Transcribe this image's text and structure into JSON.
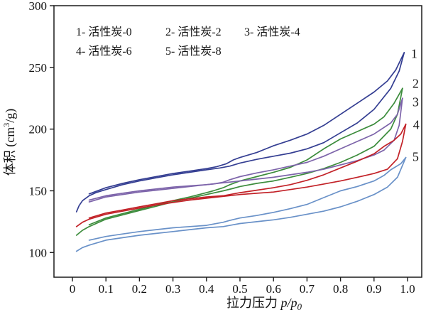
{
  "figure": {
    "background": "#ffffff",
    "frame_color": "#1b1b1b",
    "text_color": "#111111"
  },
  "chart_data": {
    "type": "line",
    "title": "",
    "xlabel": "拉力压力 p/p0",
    "ylabel": "体积 (cm3/g)",
    "xlabel_parts": {
      "cn": "拉力压力 ",
      "var": "p/p",
      "sub": "0"
    },
    "ylabel_parts": {
      "cn": "体积",
      "pre": " (cm",
      "sup": "3",
      "post": "/g)"
    },
    "xlim": [
      -0.0551,
      1.0424
    ],
    "ylim": [
      80,
      300
    ],
    "x_ticks": [
      0,
      0.1,
      0.2,
      0.3,
      0.4,
      0.5,
      0.6,
      0.7,
      0.8,
      0.9,
      1.0
    ],
    "x_tick_labels": [
      "0",
      "0.1",
      "0.2",
      "0.3",
      "0.4",
      "0.5",
      "0.6",
      "0.7",
      "0.8",
      "0.9",
      "1.0"
    ],
    "y_ticks": [
      100,
      150,
      200,
      250,
      300
    ],
    "y_tick_labels": [
      "100",
      "150",
      "200",
      "250",
      "300"
    ],
    "grid": false,
    "legend": {
      "position": "top-left-inside",
      "items": [
        {
          "id": "1",
          "name": "活性炭-0",
          "row": 0,
          "col": 0
        },
        {
          "id": "2",
          "name": "活性炭-2",
          "row": 0,
          "col": 1
        },
        {
          "id": "3",
          "name": "活性炭-4",
          "row": 0,
          "col": 2
        },
        {
          "id": "4",
          "name": "活性炭-6",
          "row": 1,
          "col": 0
        },
        {
          "id": "5",
          "name": "活性炭-8",
          "row": 1,
          "col": 1
        }
      ]
    },
    "series": [
      {
        "id": "1",
        "name": "活性炭-0",
        "color": "#343e92",
        "end_label": {
          "x": 1.02,
          "y": 261
        },
        "adsorption": [
          [
            0.012,
            133
          ],
          [
            0.02,
            138
          ],
          [
            0.03,
            142
          ],
          [
            0.05,
            146
          ],
          [
            0.07,
            148.5
          ],
          [
            0.1,
            151
          ],
          [
            0.15,
            155
          ],
          [
            0.2,
            158
          ],
          [
            0.25,
            160.5
          ],
          [
            0.3,
            163
          ],
          [
            0.35,
            165
          ],
          [
            0.4,
            167
          ],
          [
            0.44,
            168.5
          ],
          [
            0.47,
            170
          ],
          [
            0.5,
            172.5
          ],
          [
            0.55,
            175.5
          ],
          [
            0.6,
            178
          ],
          [
            0.65,
            180.5
          ],
          [
            0.7,
            184
          ],
          [
            0.75,
            189
          ],
          [
            0.8,
            197
          ],
          [
            0.85,
            205
          ],
          [
            0.9,
            216
          ],
          [
            0.95,
            233
          ],
          [
            0.975,
            247
          ],
          [
            0.99,
            262
          ]
        ],
        "desorption": [
          [
            0.99,
            262
          ],
          [
            0.965,
            248
          ],
          [
            0.94,
            239
          ],
          [
            0.9,
            230
          ],
          [
            0.85,
            221
          ],
          [
            0.8,
            212
          ],
          [
            0.75,
            203
          ],
          [
            0.7,
            196
          ],
          [
            0.65,
            191
          ],
          [
            0.6,
            186.5
          ],
          [
            0.55,
            181
          ],
          [
            0.5,
            177
          ],
          [
            0.48,
            175
          ],
          [
            0.46,
            172
          ],
          [
            0.43,
            169.5
          ],
          [
            0.4,
            168
          ],
          [
            0.35,
            166
          ],
          [
            0.3,
            164
          ],
          [
            0.25,
            161.5
          ],
          [
            0.2,
            159
          ],
          [
            0.15,
            156
          ],
          [
            0.1,
            152.5
          ],
          [
            0.05,
            147.5
          ]
        ]
      },
      {
        "id": "2",
        "name": "活性炭-2",
        "color": "#3c8c3c",
        "end_label": {
          "x": 1.024,
          "y": 237
        },
        "adsorption": [
          [
            0.012,
            114
          ],
          [
            0.03,
            118
          ],
          [
            0.05,
            121
          ],
          [
            0.1,
            127
          ],
          [
            0.15,
            130.5
          ],
          [
            0.2,
            134
          ],
          [
            0.25,
            137.5
          ],
          [
            0.3,
            141
          ],
          [
            0.35,
            144
          ],
          [
            0.4,
            147
          ],
          [
            0.45,
            150
          ],
          [
            0.48,
            152
          ],
          [
            0.5,
            153.5
          ],
          [
            0.55,
            156
          ],
          [
            0.6,
            158
          ],
          [
            0.65,
            161
          ],
          [
            0.7,
            164
          ],
          [
            0.75,
            168
          ],
          [
            0.8,
            173
          ],
          [
            0.85,
            179
          ],
          [
            0.9,
            186
          ],
          [
            0.95,
            200
          ],
          [
            0.97,
            212
          ],
          [
            0.985,
            233
          ]
        ],
        "desorption": [
          [
            0.985,
            233
          ],
          [
            0.96,
            221
          ],
          [
            0.93,
            210
          ],
          [
            0.9,
            204
          ],
          [
            0.85,
            198
          ],
          [
            0.8,
            192
          ],
          [
            0.75,
            184
          ],
          [
            0.7,
            175
          ],
          [
            0.65,
            169
          ],
          [
            0.6,
            165
          ],
          [
            0.55,
            161.5
          ],
          [
            0.5,
            158
          ],
          [
            0.47,
            155
          ],
          [
            0.45,
            152.5
          ],
          [
            0.42,
            150
          ],
          [
            0.4,
            148.5
          ],
          [
            0.35,
            145
          ],
          [
            0.3,
            142
          ],
          [
            0.25,
            138.5
          ],
          [
            0.2,
            135
          ],
          [
            0.15,
            131.5
          ],
          [
            0.1,
            128
          ],
          [
            0.05,
            122.5
          ]
        ]
      },
      {
        "id": "3",
        "name": "活性炭-4",
        "color": "#7d64aa",
        "end_label": {
          "x": 1.024,
          "y": 222
        },
        "adsorption": [
          [
            0.05,
            141
          ],
          [
            0.1,
            145
          ],
          [
            0.15,
            147
          ],
          [
            0.2,
            149
          ],
          [
            0.25,
            150.5
          ],
          [
            0.3,
            152
          ],
          [
            0.35,
            153.5
          ],
          [
            0.4,
            155
          ],
          [
            0.45,
            156.5
          ],
          [
            0.5,
            158
          ],
          [
            0.55,
            159.5
          ],
          [
            0.6,
            161
          ],
          [
            0.65,
            163
          ],
          [
            0.7,
            165
          ],
          [
            0.75,
            167.5
          ],
          [
            0.8,
            171
          ],
          [
            0.85,
            174.5
          ],
          [
            0.9,
            179
          ],
          [
            0.93,
            183
          ],
          [
            0.96,
            191
          ],
          [
            0.975,
            203
          ],
          [
            0.985,
            225
          ]
        ],
        "desorption": [
          [
            0.985,
            225
          ],
          [
            0.97,
            212
          ],
          [
            0.95,
            205
          ],
          [
            0.9,
            196
          ],
          [
            0.85,
            190
          ],
          [
            0.8,
            184
          ],
          [
            0.75,
            178
          ],
          [
            0.7,
            173
          ],
          [
            0.65,
            170
          ],
          [
            0.6,
            167
          ],
          [
            0.55,
            164.5
          ],
          [
            0.5,
            161.5
          ],
          [
            0.47,
            159
          ],
          [
            0.45,
            157
          ],
          [
            0.42,
            155.5
          ],
          [
            0.4,
            155
          ],
          [
            0.35,
            154
          ],
          [
            0.3,
            153
          ],
          [
            0.25,
            151.5
          ],
          [
            0.2,
            150
          ],
          [
            0.15,
            148
          ],
          [
            0.1,
            146
          ],
          [
            0.05,
            142.5
          ]
        ]
      },
      {
        "id": "4",
        "name": "活性炭-6",
        "color": "#c22127",
        "end_label": {
          "x": 1.026,
          "y": 203.5
        },
        "adsorption": [
          [
            0.012,
            121
          ],
          [
            0.03,
            124.5
          ],
          [
            0.05,
            127
          ],
          [
            0.1,
            131
          ],
          [
            0.15,
            133.5
          ],
          [
            0.2,
            136
          ],
          [
            0.25,
            138.5
          ],
          [
            0.3,
            140.5
          ],
          [
            0.35,
            142.5
          ],
          [
            0.4,
            144
          ],
          [
            0.45,
            145.5
          ],
          [
            0.5,
            147
          ],
          [
            0.55,
            148
          ],
          [
            0.6,
            149
          ],
          [
            0.65,
            151
          ],
          [
            0.7,
            153
          ],
          [
            0.75,
            155.5
          ],
          [
            0.8,
            158
          ],
          [
            0.85,
            161
          ],
          [
            0.9,
            164
          ],
          [
            0.94,
            167.5
          ],
          [
            0.97,
            176
          ],
          [
            0.985,
            190
          ],
          [
            0.995,
            204
          ]
        ],
        "desorption": [
          [
            0.995,
            204
          ],
          [
            0.98,
            196
          ],
          [
            0.96,
            191
          ],
          [
            0.93,
            186
          ],
          [
            0.9,
            180
          ],
          [
            0.85,
            174
          ],
          [
            0.8,
            168.5
          ],
          [
            0.75,
            163
          ],
          [
            0.7,
            158.5
          ],
          [
            0.65,
            155
          ],
          [
            0.6,
            152.5
          ],
          [
            0.55,
            150.5
          ],
          [
            0.5,
            148.5
          ],
          [
            0.47,
            147
          ],
          [
            0.45,
            146
          ],
          [
            0.4,
            145
          ],
          [
            0.35,
            143.5
          ],
          [
            0.3,
            142
          ],
          [
            0.25,
            139.5
          ],
          [
            0.2,
            137
          ],
          [
            0.15,
            134.5
          ],
          [
            0.1,
            132
          ],
          [
            0.05,
            128
          ]
        ]
      },
      {
        "id": "5",
        "name": "活性炭-8",
        "color": "#6991c8",
        "end_label": {
          "x": 1.024,
          "y": 177.5
        },
        "adsorption": [
          [
            0.012,
            101
          ],
          [
            0.03,
            104
          ],
          [
            0.05,
            106
          ],
          [
            0.1,
            110
          ],
          [
            0.15,
            112
          ],
          [
            0.2,
            114
          ],
          [
            0.25,
            115.5
          ],
          [
            0.3,
            117
          ],
          [
            0.35,
            118.5
          ],
          [
            0.4,
            120
          ],
          [
            0.45,
            121
          ],
          [
            0.48,
            122.5
          ],
          [
            0.5,
            123.5
          ],
          [
            0.55,
            125
          ],
          [
            0.6,
            126.5
          ],
          [
            0.65,
            128.5
          ],
          [
            0.7,
            131
          ],
          [
            0.75,
            133.5
          ],
          [
            0.8,
            137
          ],
          [
            0.85,
            141.5
          ],
          [
            0.9,
            147
          ],
          [
            0.94,
            153
          ],
          [
            0.97,
            161
          ],
          [
            0.995,
            177
          ]
        ],
        "desorption": [
          [
            0.995,
            177
          ],
          [
            0.98,
            172
          ],
          [
            0.95,
            167
          ],
          [
            0.93,
            162.5
          ],
          [
            0.9,
            158
          ],
          [
            0.85,
            153.5
          ],
          [
            0.8,
            150
          ],
          [
            0.75,
            144.5
          ],
          [
            0.7,
            139
          ],
          [
            0.65,
            135.5
          ],
          [
            0.6,
            132.5
          ],
          [
            0.55,
            130
          ],
          [
            0.5,
            128
          ],
          [
            0.47,
            126
          ],
          [
            0.45,
            124.5
          ],
          [
            0.42,
            123
          ],
          [
            0.4,
            122
          ],
          [
            0.35,
            121
          ],
          [
            0.3,
            120
          ],
          [
            0.25,
            118.5
          ],
          [
            0.2,
            117
          ],
          [
            0.15,
            115
          ],
          [
            0.1,
            113
          ],
          [
            0.05,
            110
          ]
        ]
      }
    ]
  }
}
